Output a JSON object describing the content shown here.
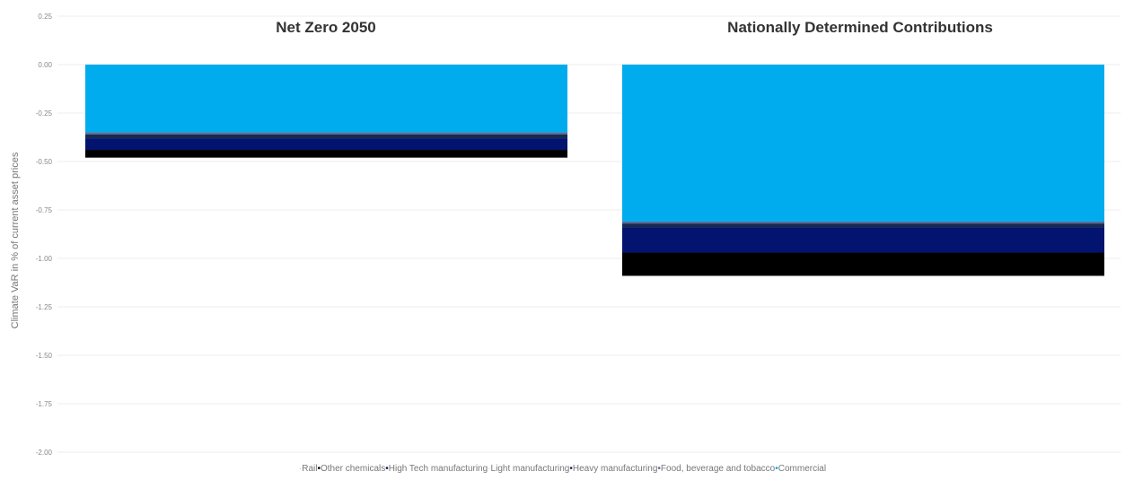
{
  "chart_data": {
    "type": "bar",
    "stacked": true,
    "ylabel": "Climate VaR in % of current asset prices",
    "ylim": [
      -2.0,
      0.25
    ],
    "yticks": [
      "0.25",
      "0.00",
      "-0.25",
      "-0.50",
      "-0.75",
      "-1.00",
      "-1.25",
      "-1.50",
      "-1.75",
      "-2.00"
    ],
    "grid": true,
    "legend_position": "bottom",
    "panels": [
      {
        "title": "Net Zero 2050",
        "segments": [
          {
            "series": "Commercial",
            "value": -0.35
          },
          {
            "series": "Food, beverage and tobacco",
            "value": -0.01
          },
          {
            "series": "Heavy manufacturing",
            "value": -0.02
          },
          {
            "series": "Light manufacturing",
            "value": -0.0
          },
          {
            "series": "High Tech manufacturing",
            "value": -0.06
          },
          {
            "series": "Other chemicals",
            "value": -0.04
          },
          {
            "series": "Rail",
            "value": -0.0
          }
        ]
      },
      {
        "title": "Nationally Determined Contributions",
        "segments": [
          {
            "series": "Commercial",
            "value": -0.81
          },
          {
            "series": "Food, beverage and tobacco",
            "value": -0.01
          },
          {
            "series": "Heavy manufacturing",
            "value": -0.02
          },
          {
            "series": "Light manufacturing",
            "value": -0.0
          },
          {
            "series": "High Tech manufacturing",
            "value": -0.13
          },
          {
            "series": "Other chemicals",
            "value": -0.12
          },
          {
            "series": "Rail",
            "value": -0.0
          }
        ]
      }
    ],
    "series": [
      {
        "name": "Rail",
        "color": "#f2a0a0"
      },
      {
        "name": "Other chemicals",
        "color": "#000000"
      },
      {
        "name": "High Tech manufacturing",
        "color": "#021370"
      },
      {
        "name": "Light manufacturing",
        "color": "#ffffff"
      },
      {
        "name": "Heavy manufacturing",
        "color": "#18294f"
      },
      {
        "name": "Food, beverage and tobacco",
        "color": "#5a6b96"
      },
      {
        "name": "Commercial",
        "color": "#00acee"
      }
    ]
  }
}
